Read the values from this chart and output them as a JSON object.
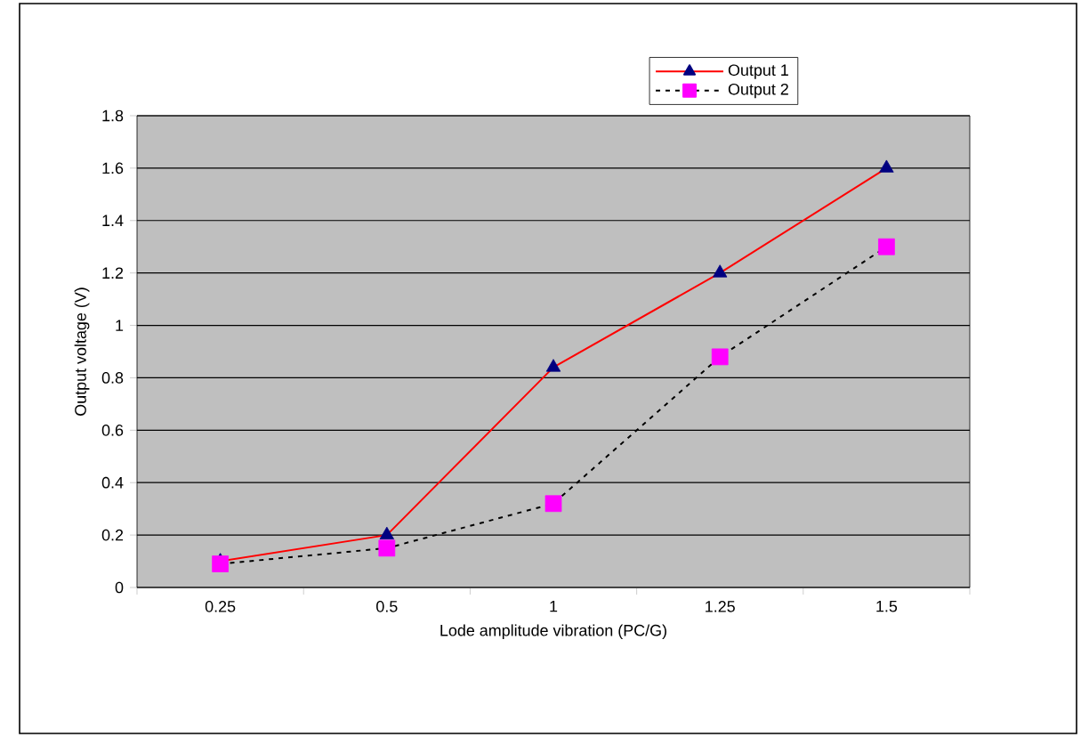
{
  "chart_data": {
    "type": "line",
    "xlabel": "Lode amplitude vibration (PC/G)",
    "ylabel": "Output voltage (V)",
    "categories": [
      "0.25",
      "0.5",
      "1",
      "1.25",
      "1.5"
    ],
    "series": [
      {
        "name": "Output 1",
        "color": "#ff0000",
        "colors": [
          "#000080",
          "#000080",
          "#000080",
          "#000080",
          "#000080"
        ],
        "marker": "triangle",
        "line_style": "solid",
        "values": [
          0.1,
          0.2,
          0.84,
          1.2,
          1.6
        ]
      },
      {
        "name": "Output 2",
        "color": "#000000",
        "colors": [
          "#ff00ff",
          "#ff00ff",
          "#ff00ff",
          "#ff00ff",
          "#ff00ff"
        ],
        "marker": "square",
        "line_style": "dashed",
        "values": [
          0.09,
          0.15,
          0.32,
          0.88,
          1.3
        ]
      }
    ],
    "ylim": [
      0,
      1.8
    ],
    "yticks": [
      0,
      0.2,
      0.4,
      0.6,
      0.8,
      1,
      1.2,
      1.4,
      1.6,
      1.8
    ],
    "grid": "y",
    "legend": "top right"
  }
}
